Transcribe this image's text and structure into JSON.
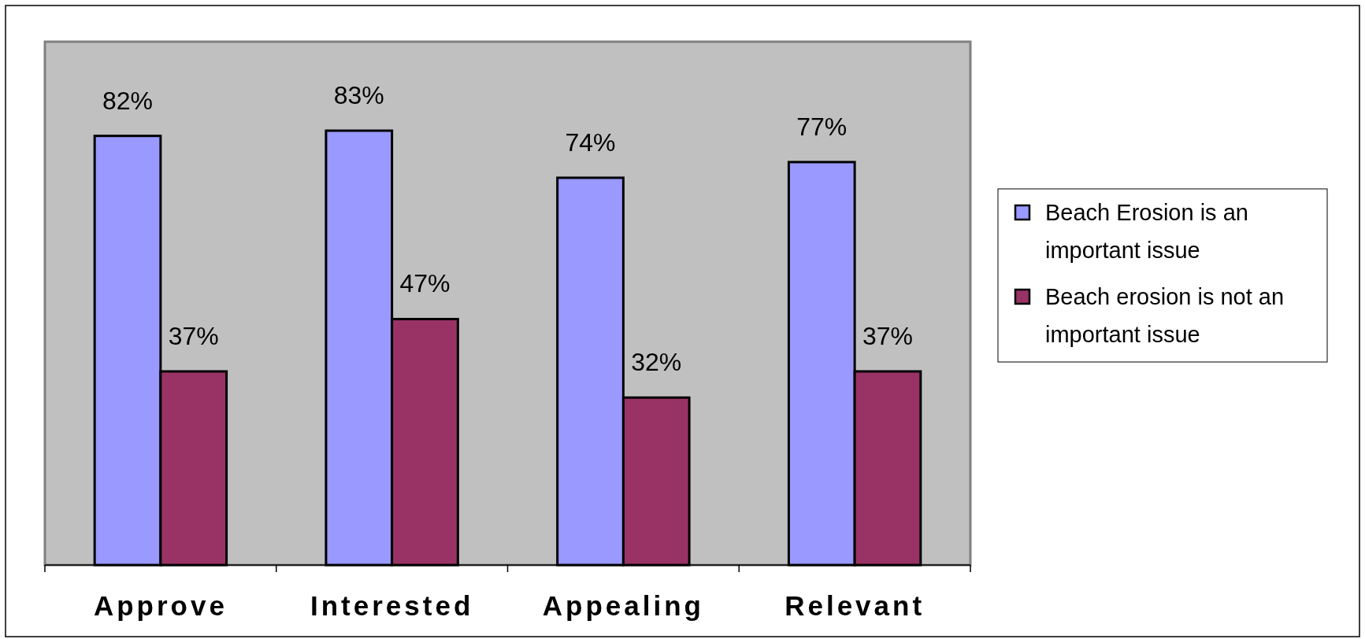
{
  "chart_data": {
    "type": "bar",
    "categories": [
      "Approve",
      "Interested",
      "Appealing",
      "Relevant"
    ],
    "series": [
      {
        "name": "Beach Erosion is an important issue",
        "color": "#9999ff",
        "values": [
          82,
          83,
          74,
          77
        ],
        "value_labels": [
          "82%",
          "83%",
          "74%",
          "77%"
        ]
      },
      {
        "name": "Beach erosion is not an important issue",
        "color": "#993366",
        "values": [
          37,
          47,
          32,
          37
        ],
        "value_labels": [
          "37%",
          "47%",
          "32%",
          "37%"
        ]
      }
    ],
    "ylim": [
      0,
      100
    ],
    "tick_labels": "x",
    "legend": "right"
  }
}
